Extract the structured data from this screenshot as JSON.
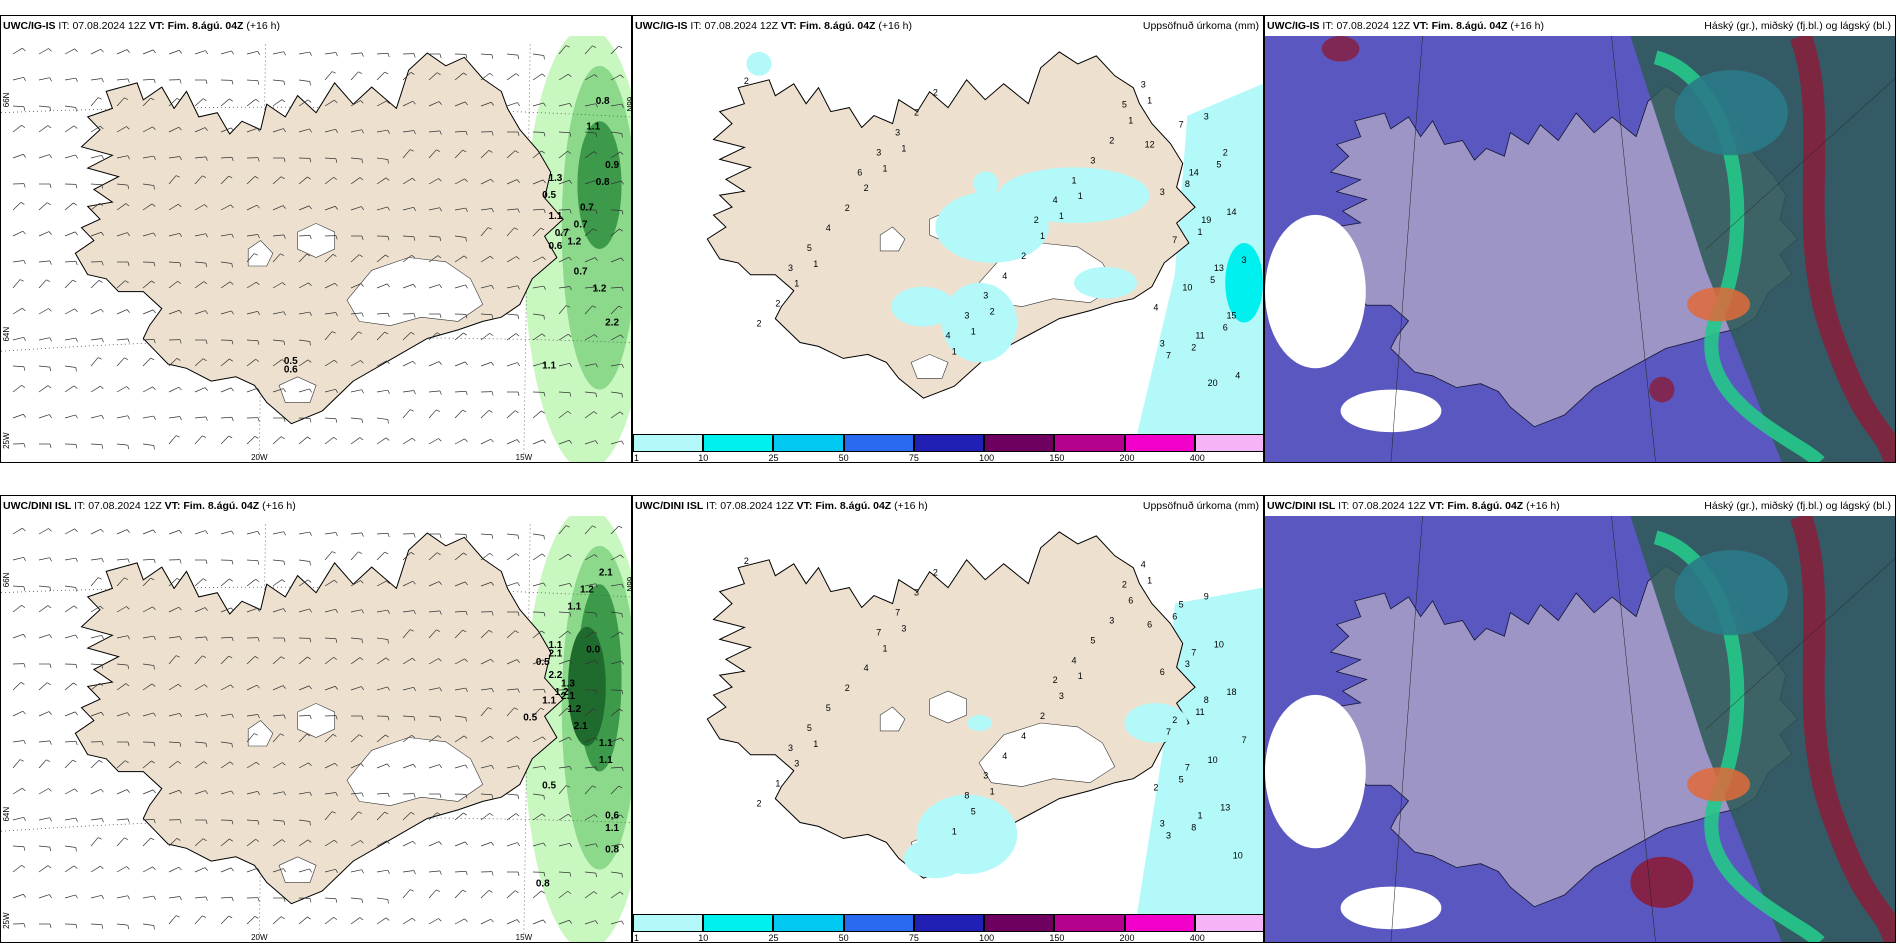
{
  "colors": {
    "land": "#ede0cf",
    "snow": "#ffffff",
    "sea": "#5a58c0",
    "green1": "#c9f7c0",
    "green2": "#8cd98c",
    "green3": "#3c9a4a",
    "green4": "#1f6b2e",
    "precip1": "#b4f9f9",
    "precip2": "#00f0f0",
    "cloudHigh": "#2d5a55",
    "cloudMid": "#25c88a",
    "cloudLow": "#8a1d3a"
  },
  "rows": [
    {
      "model": "UWC/IG-IS",
      "panels": [
        {
          "type": "wind",
          "model": "UWC/IG-IS",
          "it_label": "IT:",
          "it": "07.08.2024 12Z",
          "vt_label": "VT:",
          "vt": "Fim. 8.ágú. 04Z",
          "lead": "(+16 h)",
          "right": "",
          "axis": {
            "bottom": [
              "20W",
              "15W"
            ],
            "left": [
              "66N",
              "64N",
              "25W"
            ],
            "right": [
              "66N"
            ]
          },
          "values": [
            "0.8",
            "1.1",
            "0.9",
            "0.8",
            "1.3",
            "0.5",
            "0.7",
            "1.1",
            "0.7",
            "0.7",
            "0.6",
            "1.2",
            "0.7",
            "1.2",
            "2.2",
            "1.1",
            "0.5",
            "0.6"
          ]
        },
        {
          "type": "precip",
          "model": "UWC/IG-IS",
          "it_label": "IT:",
          "it": "07.08.2024 12Z",
          "vt_label": "VT:",
          "vt": "Fim. 8.ágú. 04Z",
          "lead": "(+16 h)",
          "right": "Uppsöfnuð úrkoma (mm)",
          "values": [
            "2",
            "1",
            "2",
            "1",
            "1",
            "1",
            "1",
            "1",
            "1",
            "1",
            "1",
            "1",
            "1",
            "2",
            "2",
            "2",
            "2",
            "2",
            "2",
            "2",
            "3",
            "4",
            "2",
            "4",
            "3",
            "1",
            "3",
            "3",
            "5",
            "3",
            "4",
            "3",
            "3",
            "3",
            "5",
            "2",
            "4",
            "6",
            "8",
            "2",
            "1",
            "3",
            "5",
            "5",
            "6",
            "14",
            "4",
            "3",
            "12",
            "4",
            "3",
            "7",
            "7",
            "7",
            "10",
            "14",
            "11",
            "19",
            "20",
            "13",
            "2",
            "15"
          ]
        },
        {
          "type": "cloud",
          "model": "UWC/IG-IS",
          "it_label": "IT:",
          "it": "07.08.2024 12Z",
          "vt_label": "VT:",
          "vt": "Fim. 8.ágú. 04Z",
          "lead": "(+16 h)",
          "right": "Háský (gr.), miðský (fj.bl.) og lágský (bl.)"
        }
      ]
    },
    {
      "model": "UWC/DINI ISL",
      "panels": [
        {
          "type": "wind",
          "model": "UWC/DINI ISL",
          "it_label": "IT:",
          "it": "07.08.2024 12Z",
          "vt_label": "VT:",
          "vt": "Fim. 8.ágú. 04Z",
          "lead": "(+16 h)",
          "right": "",
          "axis": {
            "bottom": [
              "20W",
              "15W"
            ],
            "left": [
              "66N",
              "64N",
              "25W"
            ],
            "right": [
              "66N"
            ]
          },
          "values": [
            "2.1",
            "1.2",
            "1.1",
            "1.1",
            "2.1",
            "0.5",
            "0.0",
            "2.2",
            "1.3",
            "1.2",
            "1.2",
            "1.1",
            "0.5",
            "2.1",
            "2.1",
            "1.1",
            "1.1",
            "0.5",
            "0.6",
            "1.1",
            "0.8",
            "0.8"
          ]
        },
        {
          "type": "precip",
          "model": "UWC/DINI ISL",
          "it_label": "IT:",
          "it": "07.08.2024 12Z",
          "vt_label": "VT:",
          "vt": "Fim. 8.ágú. 04Z",
          "lead": "(+16 h)",
          "right": "Uppsöfnuð úrkoma (mm)",
          "values": [
            "2",
            "1",
            "1",
            "3",
            "1",
            "1",
            "3",
            "5",
            "1",
            "3",
            "6",
            "2",
            "1",
            "4",
            "1",
            "3",
            "4",
            "2",
            "2",
            "2",
            "5",
            "4",
            "3",
            "5",
            "3",
            "4",
            "3",
            "7",
            "5",
            "4",
            "2",
            "8",
            "7",
            "3",
            "2",
            "7",
            "6",
            "5",
            "3",
            "8",
            "11",
            "9",
            "10",
            "10",
            "13",
            "18",
            "10",
            "7",
            "6",
            "2",
            "6",
            "3",
            "2",
            "5",
            "7",
            "7",
            "1",
            "8"
          ]
        },
        {
          "type": "cloud",
          "model": "UWC/DINI ISL",
          "it_label": "IT:",
          "it": "07.08.2024 12Z",
          "vt_label": "VT:",
          "vt": "Fim. 8.ágú. 04Z",
          "lead": "(+16 h)",
          "right": "Háský (gr.), miðský (fj.bl.) og lágský (bl.)"
        }
      ]
    }
  ],
  "legend": {
    "ticks": [
      "1",
      "10",
      "25",
      "50",
      "75",
      "100",
      "150",
      "200",
      "400"
    ],
    "colors": [
      "#b4f9f9",
      "#00f0f0",
      "#00c8f0",
      "#2a6af0",
      "#2020b4",
      "#6e0060",
      "#b4008c",
      "#f000c8",
      "#f5b4f5"
    ]
  }
}
